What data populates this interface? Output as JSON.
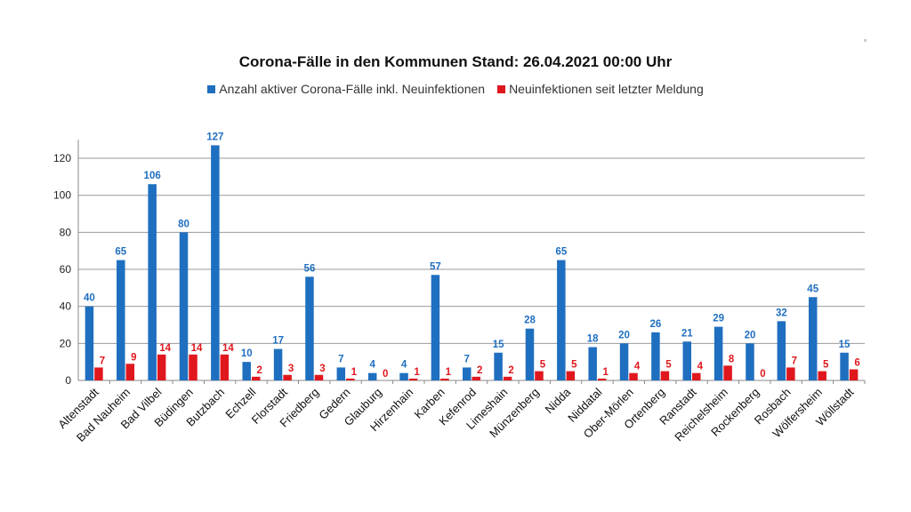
{
  "chart_data": {
    "type": "bar",
    "title": "Corona-Fälle in den Kommunen Stand: 26.04.2021 00:00 Uhr",
    "categories": [
      "Altenstadt",
      "Bad Nauheim",
      "Bad Vilbel",
      "Büdingen",
      "Butzbach",
      "Echzell",
      "Florstadt",
      "Friedberg",
      "Gedern",
      "Glauburg",
      "Hirzenhain",
      "Karben",
      "Kefenrod",
      "Limeshain",
      "Münzenberg",
      "Nidda",
      "Niddatal",
      "Ober-Mörlen",
      "Ortenberg",
      "Ranstadt",
      "Reichelsheim",
      "Rockenberg",
      "Rosbach",
      "Wölfersheim",
      "Wöllstadt"
    ],
    "series": [
      {
        "name": "Anzahl aktiver Corona-Fälle inkl. Neuinfektionen",
        "color": "#1f6fc0",
        "values": [
          40,
          65,
          106,
          80,
          127,
          10,
          17,
          56,
          7,
          4,
          4,
          57,
          7,
          15,
          28,
          65,
          18,
          20,
          26,
          21,
          29,
          20,
          32,
          45,
          15
        ]
      },
      {
        "name": "Neuinfektionen seit letzter Meldung",
        "color": "#e0181e",
        "values": [
          7,
          9,
          14,
          14,
          14,
          2,
          3,
          3,
          1,
          0,
          1,
          1,
          2,
          2,
          5,
          5,
          1,
          4,
          5,
          4,
          8,
          0,
          7,
          5,
          6
        ]
      }
    ],
    "yticks": [
      0,
      20,
      40,
      60,
      80,
      100,
      120
    ],
    "ylim": [
      0,
      130
    ],
    "grid": true,
    "legend_position": "top"
  }
}
